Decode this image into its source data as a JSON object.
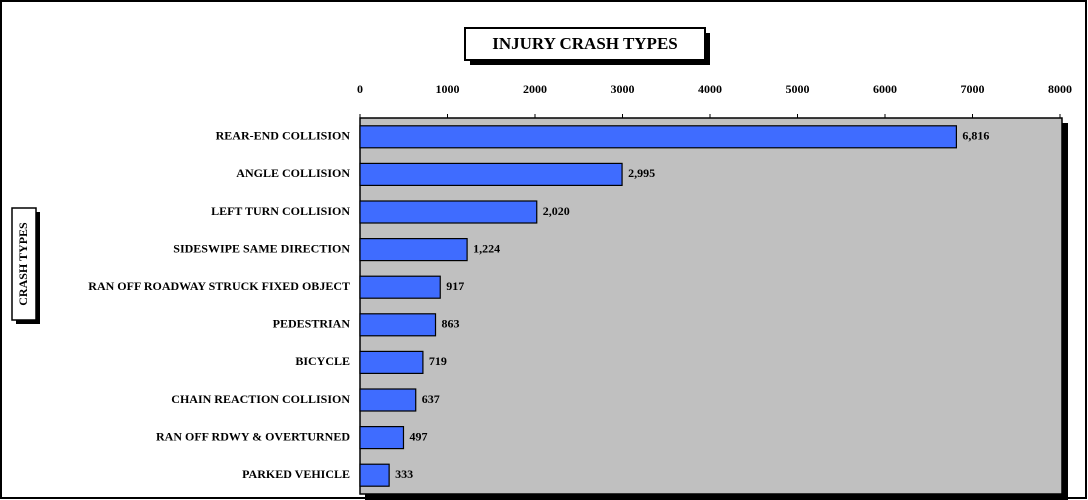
{
  "chart_data": {
    "type": "bar",
    "orientation": "horizontal",
    "title": "INJURY CRASH TYPES",
    "y_axis_label": "CRASH TYPES",
    "categories": [
      "REAR-END COLLISION",
      "ANGLE COLLISION",
      "LEFT TURN COLLISION",
      "SIDESWIPE SAME DIRECTION",
      "RAN OFF ROADWAY STRUCK FIXED OBJECT",
      "PEDESTRIAN",
      "BICYCLE",
      "CHAIN REACTION COLLISION",
      "RAN OFF RDWY & OVERTURNED",
      "PARKED VEHICLE"
    ],
    "values": [
      6816,
      2995,
      2020,
      1224,
      917,
      863,
      719,
      637,
      497,
      333
    ],
    "value_labels": [
      "6,816",
      "2,995",
      "2,020",
      "1,224",
      "917",
      "863",
      "719",
      "637",
      "497",
      "333"
    ],
    "color": "#3f6cff",
    "xlim": [
      0,
      8000
    ],
    "xticks": [
      0,
      1000,
      2000,
      3000,
      4000,
      5000,
      6000,
      7000,
      8000
    ]
  }
}
